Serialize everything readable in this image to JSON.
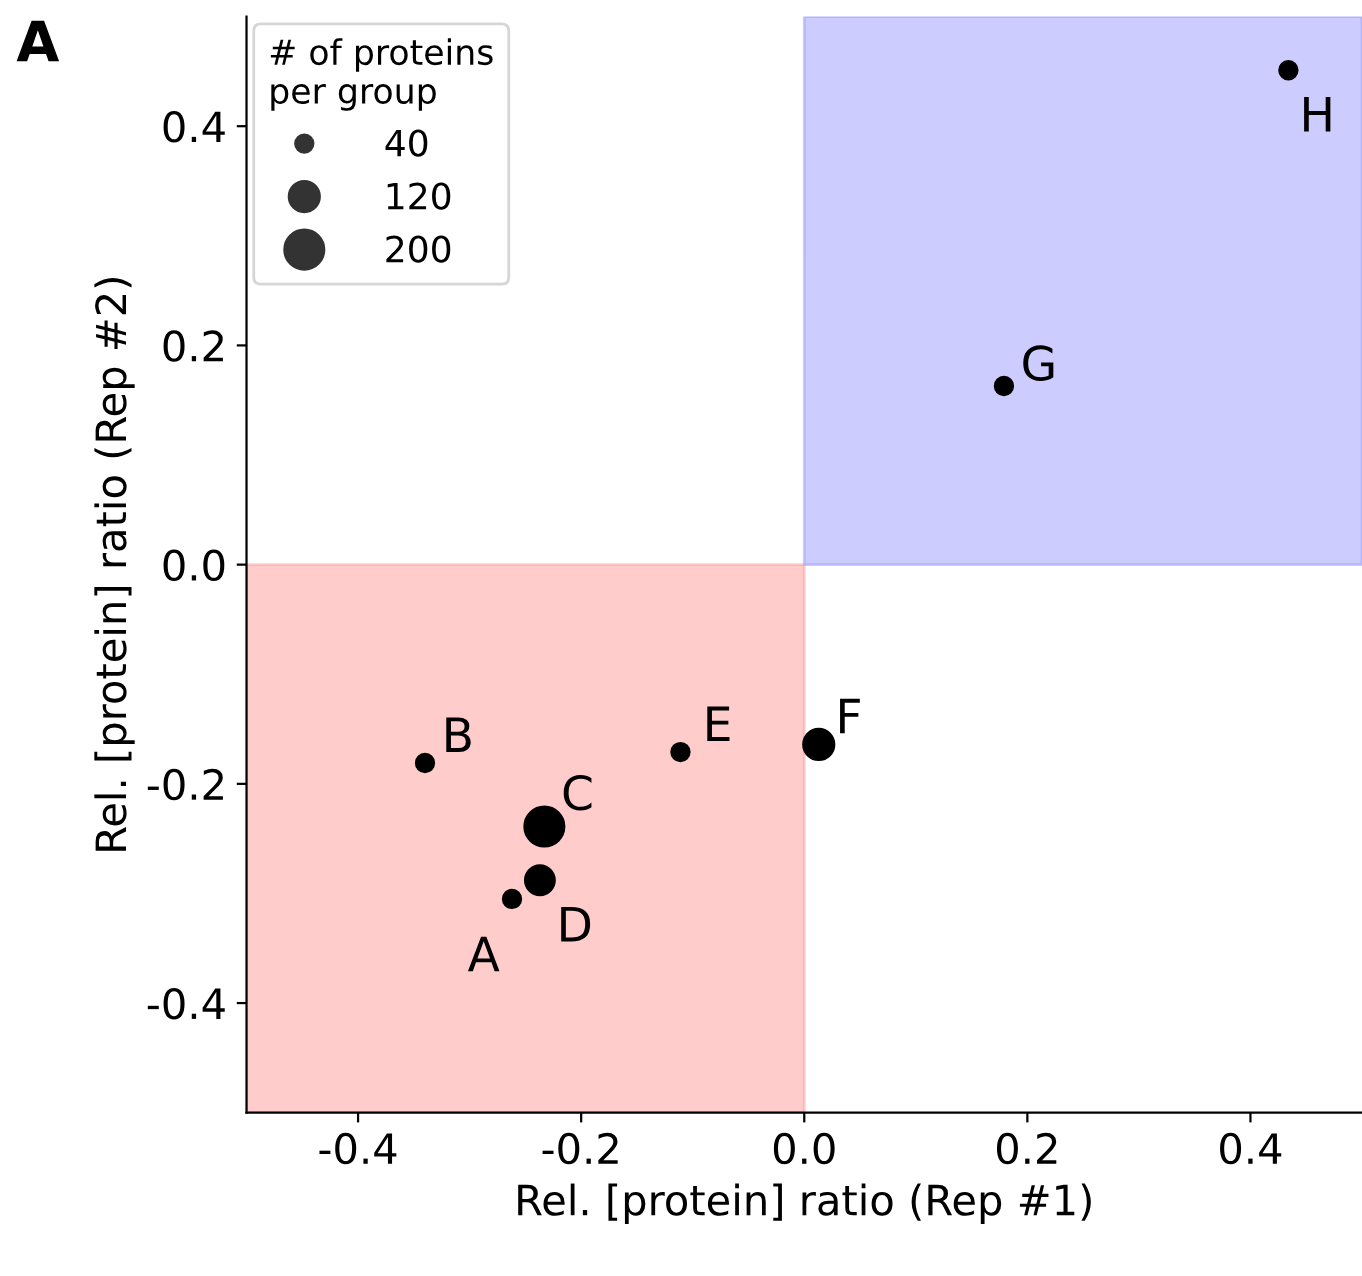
{
  "chart_data": {
    "type": "bubble",
    "xlabel": "Rel. [protein] ratio (Rep #1)",
    "ylabel": "Rel. [protein] ratio (Rep #2)",
    "legend_title": "# of proteins\nper group",
    "x": [
      -0.262,
      -0.34,
      -0.233,
      -0.237,
      -0.111,
      0.013,
      0.179,
      0.434
    ],
    "values": [
      -0.305,
      -0.181,
      -0.239,
      -0.288,
      -0.171,
      -0.164,
      0.163,
      0.451
    ],
    "sizes": [
      40,
      40,
      200,
      110,
      40,
      120,
      40,
      40
    ],
    "size_legend": [
      40,
      120,
      200
    ],
    "color": "#000000",
    "xlim": [
      -0.5,
      0.5
    ],
    "ylim": [
      -0.5,
      0.5
    ],
    "xticks": [
      -0.4,
      -0.2,
      {
        "value": 0,
        "label": "0.0"
      },
      0.2,
      0.4
    ],
    "yticks": [
      -0.4,
      -0.2,
      {
        "value": 0,
        "label": "0.0"
      },
      0.2,
      0.4
    ],
    "bands": [
      {
        "axis": "x",
        "from": -0.5,
        "to": 0.0,
        "color": "#ff9999"
      },
      {
        "axis": "x",
        "from": 0.0,
        "to": 0.5,
        "color": "#9999ff"
      }
    ],
    "annotations": [
      {
        "text": "A",
        "x": -0.262,
        "y": -0.305
      },
      {
        "text": "B",
        "x": -0.34,
        "y": -0.181
      },
      {
        "text": "C",
        "x": -0.233,
        "y": -0.239
      },
      {
        "text": "D",
        "x": -0.237,
        "y": -0.288
      },
      {
        "text": "E",
        "x": -0.111,
        "y": -0.171
      },
      {
        "text": "F",
        "x": 0.013,
        "y": -0.164
      },
      {
        "text": "G",
        "x": 0.179,
        "y": 0.163
      },
      {
        "text": "H",
        "x": 0.434,
        "y": 0.451
      },
      "A"
    ],
    "grid": false
  }
}
